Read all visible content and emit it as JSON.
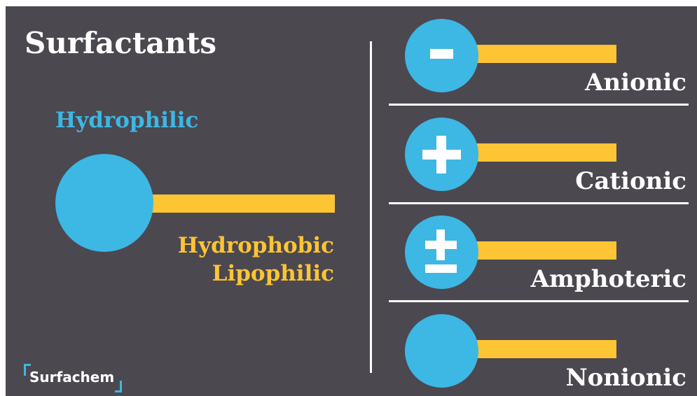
{
  "title": "Surfactants",
  "molecule": {
    "head_label": "Hydrophilic",
    "tail_label_line1": "Hydrophobic",
    "tail_label_line2": "Lipophilic"
  },
  "types": [
    {
      "label": "Anionic",
      "symbol": "minus-icon"
    },
    {
      "label": "Cationic",
      "symbol": "plus-icon"
    },
    {
      "label": "Amphoteric",
      "symbol": "plus-minus-icon"
    },
    {
      "label": "Nonionic",
      "symbol": "none"
    }
  ],
  "logo": {
    "text": "Surfachem"
  },
  "colors": {
    "background": "#4b4850",
    "head": "#3db7e4",
    "tail": "#fdc433",
    "text": "#ffffff"
  }
}
